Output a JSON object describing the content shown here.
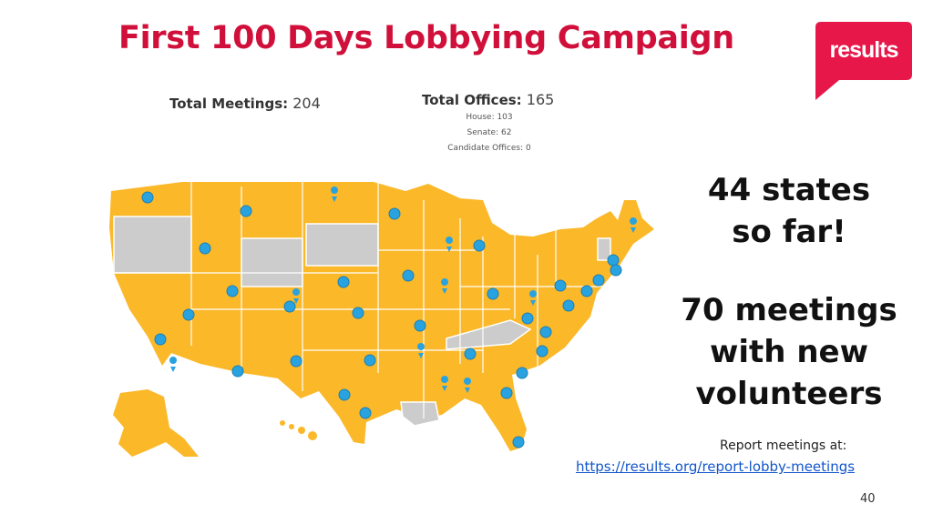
{
  "slide": {
    "title": "First 100 Days Lobbying Campaign",
    "page_number": "40"
  },
  "logo": {
    "text": "results",
    "color": "#e8174a",
    "icon": "results-logo"
  },
  "stats": {
    "total_meetings_label": "Total Meetings:",
    "total_meetings_value": "204",
    "total_offices_label": "Total Offices:",
    "total_offices_value": "165",
    "house": "House: 103",
    "senate": "Senate: 62",
    "candidate_offices": "Candidate Offices: 0"
  },
  "map": {
    "icon": "us-map",
    "lobbied_color": "#fbb829",
    "not_lobbied_color": "#cccccc",
    "marker_color": "#29a3e0"
  },
  "highlights": {
    "states_line1": "44 states",
    "states_line2": "so far!",
    "meetings_line1": "70 meetings",
    "meetings_line2": "with new",
    "meetings_line3": "volunteers"
  },
  "report": {
    "label": "Report meetings at:",
    "link": "https://results.org/report-lobby-meetings"
  }
}
